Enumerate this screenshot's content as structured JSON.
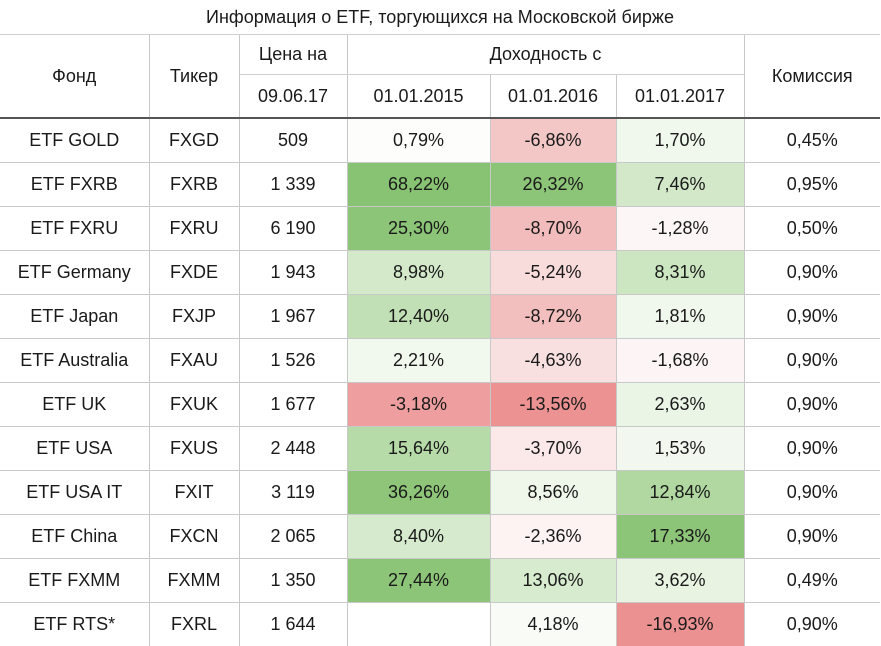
{
  "title": "Информация о ETF, торгующихся на Московской бирже",
  "headers": {
    "fund": "Фонд",
    "ticker": "Тикер",
    "price_line1": "Цена на",
    "price_line2": "09.06.17",
    "returns_since": "Доходность с",
    "y2015": "01.01.2015",
    "y2016": "01.01.2016",
    "y2017": "01.01.2017",
    "commission": "Комиссия"
  },
  "rows": [
    {
      "fund": "ETF GOLD",
      "ticker": "FXGD",
      "price": "509",
      "r2015": "0,79%",
      "r2016": "-6,86%",
      "r2017": "1,70%",
      "commission": "0,45%",
      "c2015": "#fdfefc",
      "c2016": "#f4c7c7",
      "c2017": "#f0f7ec"
    },
    {
      "fund": "ETF FXRB",
      "ticker": "FXRB",
      "price": "1 339",
      "r2015": "68,22%",
      "r2016": "26,32%",
      "r2017": "7,46%",
      "commission": "0,95%",
      "c2015": "#88c273",
      "c2016": "#8cc478",
      "c2017": "#d2e8c8"
    },
    {
      "fund": "ETF FXRU",
      "ticker": "FXRU",
      "price": "6 190",
      "r2015": "25,30%",
      "r2016": "-8,70%",
      "r2017": "-1,28%",
      "commission": "0,50%",
      "c2015": "#8cc478",
      "c2016": "#f2bcbc",
      "c2017": "#fdf6f6"
    },
    {
      "fund": "ETF Germany",
      "ticker": "FXDE",
      "price": "1 943",
      "r2015": "8,98%",
      "r2016": "-5,24%",
      "r2017": "8,31%",
      "commission": "0,90%",
      "c2015": "#d3e9c9",
      "c2016": "#f8dcdc",
      "c2017": "#cde6c2"
    },
    {
      "fund": "ETF Japan",
      "ticker": "FXJP",
      "price": "1 967",
      "r2015": "12,40%",
      "r2016": "-8,72%",
      "r2017": "1,81%",
      "commission": "0,90%",
      "c2015": "#c2e0b5",
      "c2016": "#f3bebe",
      "c2017": "#f0f7ec"
    },
    {
      "fund": "ETF Australia",
      "ticker": "FXAU",
      "price": "1 526",
      "r2015": "2,21%",
      "r2016": "-4,63%",
      "r2017": "-1,68%",
      "commission": "0,90%",
      "c2015": "#f1f8ee",
      "c2016": "#f9e0e0",
      "c2017": "#fdf5f5"
    },
    {
      "fund": "ETF UK",
      "ticker": "FXUK",
      "price": "1 677",
      "r2015": "-3,18%",
      "r2016": "-13,56%",
      "r2017": "2,63%",
      "commission": "0,90%",
      "c2015": "#ee9e9e",
      "c2016": "#ec9292",
      "c2017": "#ebf5e6"
    },
    {
      "fund": "ETF USA",
      "ticker": "FXUS",
      "price": "2 448",
      "r2015": "15,64%",
      "r2016": "-3,70%",
      "r2017": "1,53%",
      "commission": "0,90%",
      "c2015": "#b7dba8",
      "c2016": "#fbe9e9",
      "c2017": "#f2f8ef"
    },
    {
      "fund": "ETF USA IT",
      "ticker": "FXIT",
      "price": "3 119",
      "r2015": "36,26%",
      "r2016": "8,56%",
      "r2017": "12,84%",
      "commission": "0,90%",
      "c2015": "#8ec579",
      "c2016": "#eef7ea",
      "c2017": "#b1d8a1"
    },
    {
      "fund": "ETF China",
      "ticker": "FXCN",
      "price": "2 065",
      "r2015": "8,40%",
      "r2016": "-2,36%",
      "r2017": "17,33%",
      "commission": "0,90%",
      "c2015": "#d6ebcd",
      "c2016": "#fdf3f3",
      "c2017": "#8cc478"
    },
    {
      "fund": "ETF FXMM",
      "ticker": "FXMM",
      "price": "1 350",
      "r2015": "27,44%",
      "r2016": "13,06%",
      "r2017": "3,62%",
      "commission": "0,49%",
      "c2015": "#8cc478",
      "c2016": "#d7ebce",
      "c2017": "#e8f3e2"
    },
    {
      "fund": "ETF RTS*",
      "ticker": "FXRL",
      "price": "1 644",
      "r2015": "",
      "r2016": "4,18%",
      "r2017": "-16,93%",
      "commission": "0,90%",
      "c2015": "#ffffff",
      "c2016": "#f8fbf6",
      "c2017": "#ec9191"
    }
  ]
}
